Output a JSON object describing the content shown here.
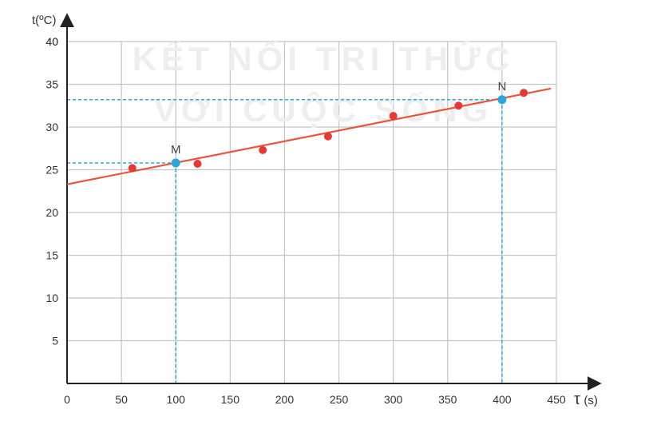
{
  "chart_data": {
    "type": "scatter",
    "xlabel_symbol": "τ",
    "xlabel_unit": "(s)",
    "ylabel": "t(ºC)",
    "xlim": [
      0,
      450
    ],
    "ylim": [
      0,
      40
    ],
    "x_ticks": [
      0,
      50,
      100,
      150,
      200,
      250,
      300,
      350,
      400,
      450
    ],
    "y_ticks": [
      5,
      10,
      15,
      20,
      25,
      30,
      35,
      40
    ],
    "grid": true,
    "watermark": [
      "KẾT NỐI TRI THỨC",
      "VỚI CUỘC SỐNG"
    ],
    "points": [
      {
        "x": 60,
        "y": 25.2
      },
      {
        "x": 120,
        "y": 25.7
      },
      {
        "x": 180,
        "y": 27.3
      },
      {
        "x": 240,
        "y": 28.9
      },
      {
        "x": 300,
        "y": 31.3
      },
      {
        "x": 360,
        "y": 32.5
      },
      {
        "x": 420,
        "y": 34.0
      }
    ],
    "fit_line": {
      "x1": 0,
      "y1": 23.3,
      "x2": 445,
      "y2": 34.5
    },
    "marked_points": [
      {
        "label": "M",
        "x": 100,
        "y": 25.8
      },
      {
        "label": "N",
        "x": 400,
        "y": 33.2
      }
    ],
    "colors": {
      "points": "#e53935",
      "line": "#e8553a",
      "marked": "#29a8e0",
      "guides": "#29a8e0",
      "grid": "#c4c4c4",
      "axis": "#222222"
    }
  }
}
